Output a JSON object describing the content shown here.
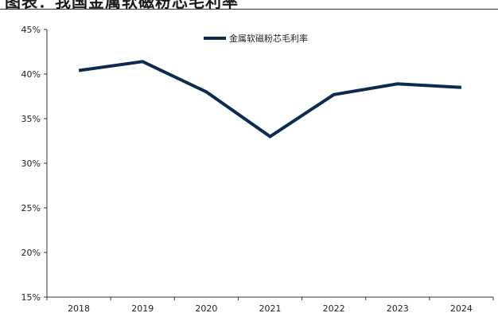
{
  "header": {
    "title": "图表：我国金属软磁粉芯毛利率"
  },
  "colors": {
    "series": "#0d2b4e",
    "axis": "#333333"
  },
  "chart_data": {
    "type": "line",
    "title": "",
    "xlabel": "",
    "ylabel": "",
    "x": [
      "2018",
      "2019",
      "2020",
      "2021",
      "2022",
      "2023",
      "2024"
    ],
    "ylim": [
      15,
      45
    ],
    "yticks": [
      15,
      20,
      25,
      30,
      35,
      40,
      45
    ],
    "ytick_labels": [
      "15%",
      "20%",
      "25%",
      "30%",
      "35%",
      "40%",
      "45%"
    ],
    "grid": false,
    "legend": "top-center",
    "series": [
      {
        "name": "金属软磁粉芯毛利率",
        "values": [
          40.4,
          41.4,
          38.0,
          33.0,
          37.7,
          38.9,
          38.5
        ]
      }
    ]
  }
}
